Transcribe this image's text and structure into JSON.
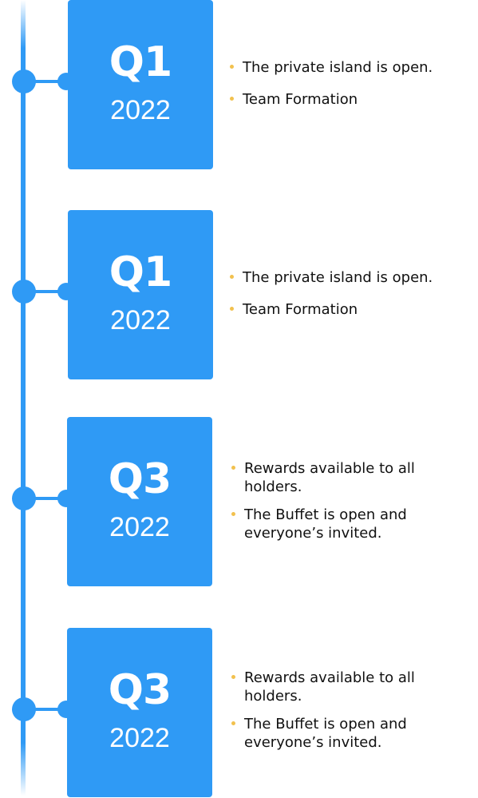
{
  "colors": {
    "accent": "#2f9af5",
    "bullet": "#f2c14e",
    "text": "#111111",
    "card_text": "#ffffff"
  },
  "milestones": [
    {
      "quarter": "Q1",
      "year": "2022",
      "items": [
        "The private island is open.",
        "Team Formation"
      ]
    },
    {
      "quarter": "Q1",
      "year": "2022",
      "items": [
        "The private island is open.",
        "Team Formation"
      ]
    },
    {
      "quarter": "Q3",
      "year": "2022",
      "items": [
        "Rewards available to all holders.",
        "The Buffet is open and everyone’s invited."
      ]
    },
    {
      "quarter": "Q3",
      "year": "2022",
      "items": [
        "Rewards available to all holders.",
        "The Buffet is open and everyone’s invited."
      ]
    }
  ]
}
